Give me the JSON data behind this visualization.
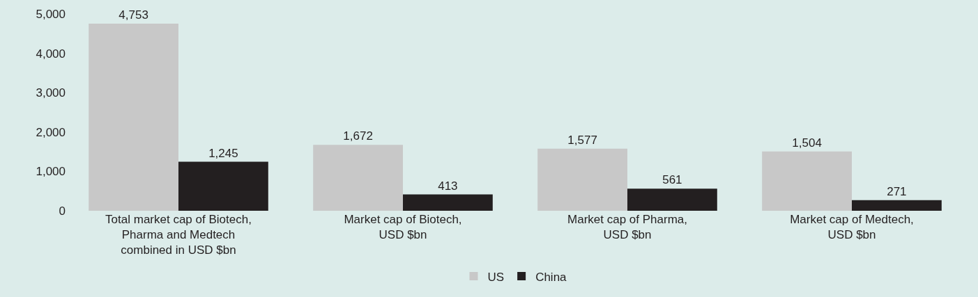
{
  "chart_data": {
    "type": "bar",
    "categories": [
      "Total market cap of Biotech,\nPharma and Medtech\ncombined in USD $bn",
      "Market cap of Biotech,\nUSD $bn",
      "Market cap of Pharma,\nUSD $bn",
      "Market cap of Medtech,\nUSD $bn"
    ],
    "series": [
      {
        "name": "US",
        "color": "#c8c8c8",
        "values": [
          4753,
          1672,
          1577,
          1504
        ],
        "value_labels": [
          "4,753",
          "1,672",
          "1,577",
          "1,504"
        ]
      },
      {
        "name": "China",
        "color": "#231f20",
        "values": [
          1245,
          413,
          561,
          271
        ],
        "value_labels": [
          "1,245",
          "413",
          "561",
          "271"
        ]
      }
    ],
    "ylim": [
      0,
      5000
    ],
    "yticks": [
      {
        "value": 0,
        "label": "0"
      },
      {
        "value": 1000,
        "label": "1,000"
      },
      {
        "value": 2000,
        "label": "2,000"
      },
      {
        "value": 3000,
        "label": "3,000"
      },
      {
        "value": 4000,
        "label": "4,000"
      },
      {
        "value": 5000,
        "label": "5,000"
      }
    ],
    "grid": false,
    "legend": "bottom"
  }
}
